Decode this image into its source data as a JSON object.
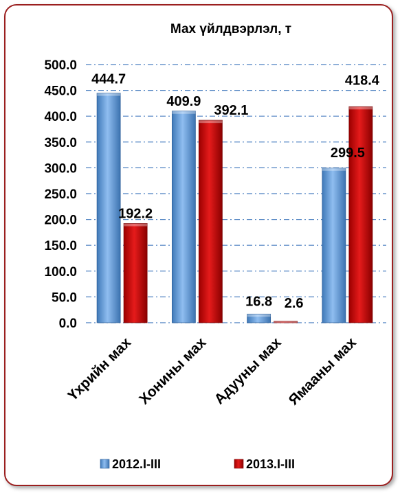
{
  "chart_data": {
    "type": "bar",
    "title": "Мах үйлдвэрлэл, т",
    "categories": [
      "Үхрийн мах",
      "Хонины мах",
      "Адууны мах",
      "Ямааны мах"
    ],
    "series": [
      {
        "name": "2012.I-III",
        "values": [
          444.7,
          409.9,
          16.8,
          299.5
        ],
        "color": "#5b9bd5",
        "labels": [
          "444.7",
          "409.9",
          "16.8",
          "299.5"
        ]
      },
      {
        "name": "2013.I-III",
        "values": [
          192.2,
          392.1,
          2.6,
          418.4
        ],
        "color": "#c00000",
        "labels": [
          "192.2",
          "392.1",
          "2.6",
          "418.4"
        ]
      }
    ],
    "ylim": [
      0,
      500
    ],
    "y_ticks": [
      "0.0",
      "50.0",
      "100.0",
      "150.0",
      "200.0",
      "250.0",
      "300.0",
      "350.0",
      "400.0",
      "450.0",
      "500.0"
    ],
    "grid": "dash-dot horizontal",
    "legend_position": "bottom"
  }
}
